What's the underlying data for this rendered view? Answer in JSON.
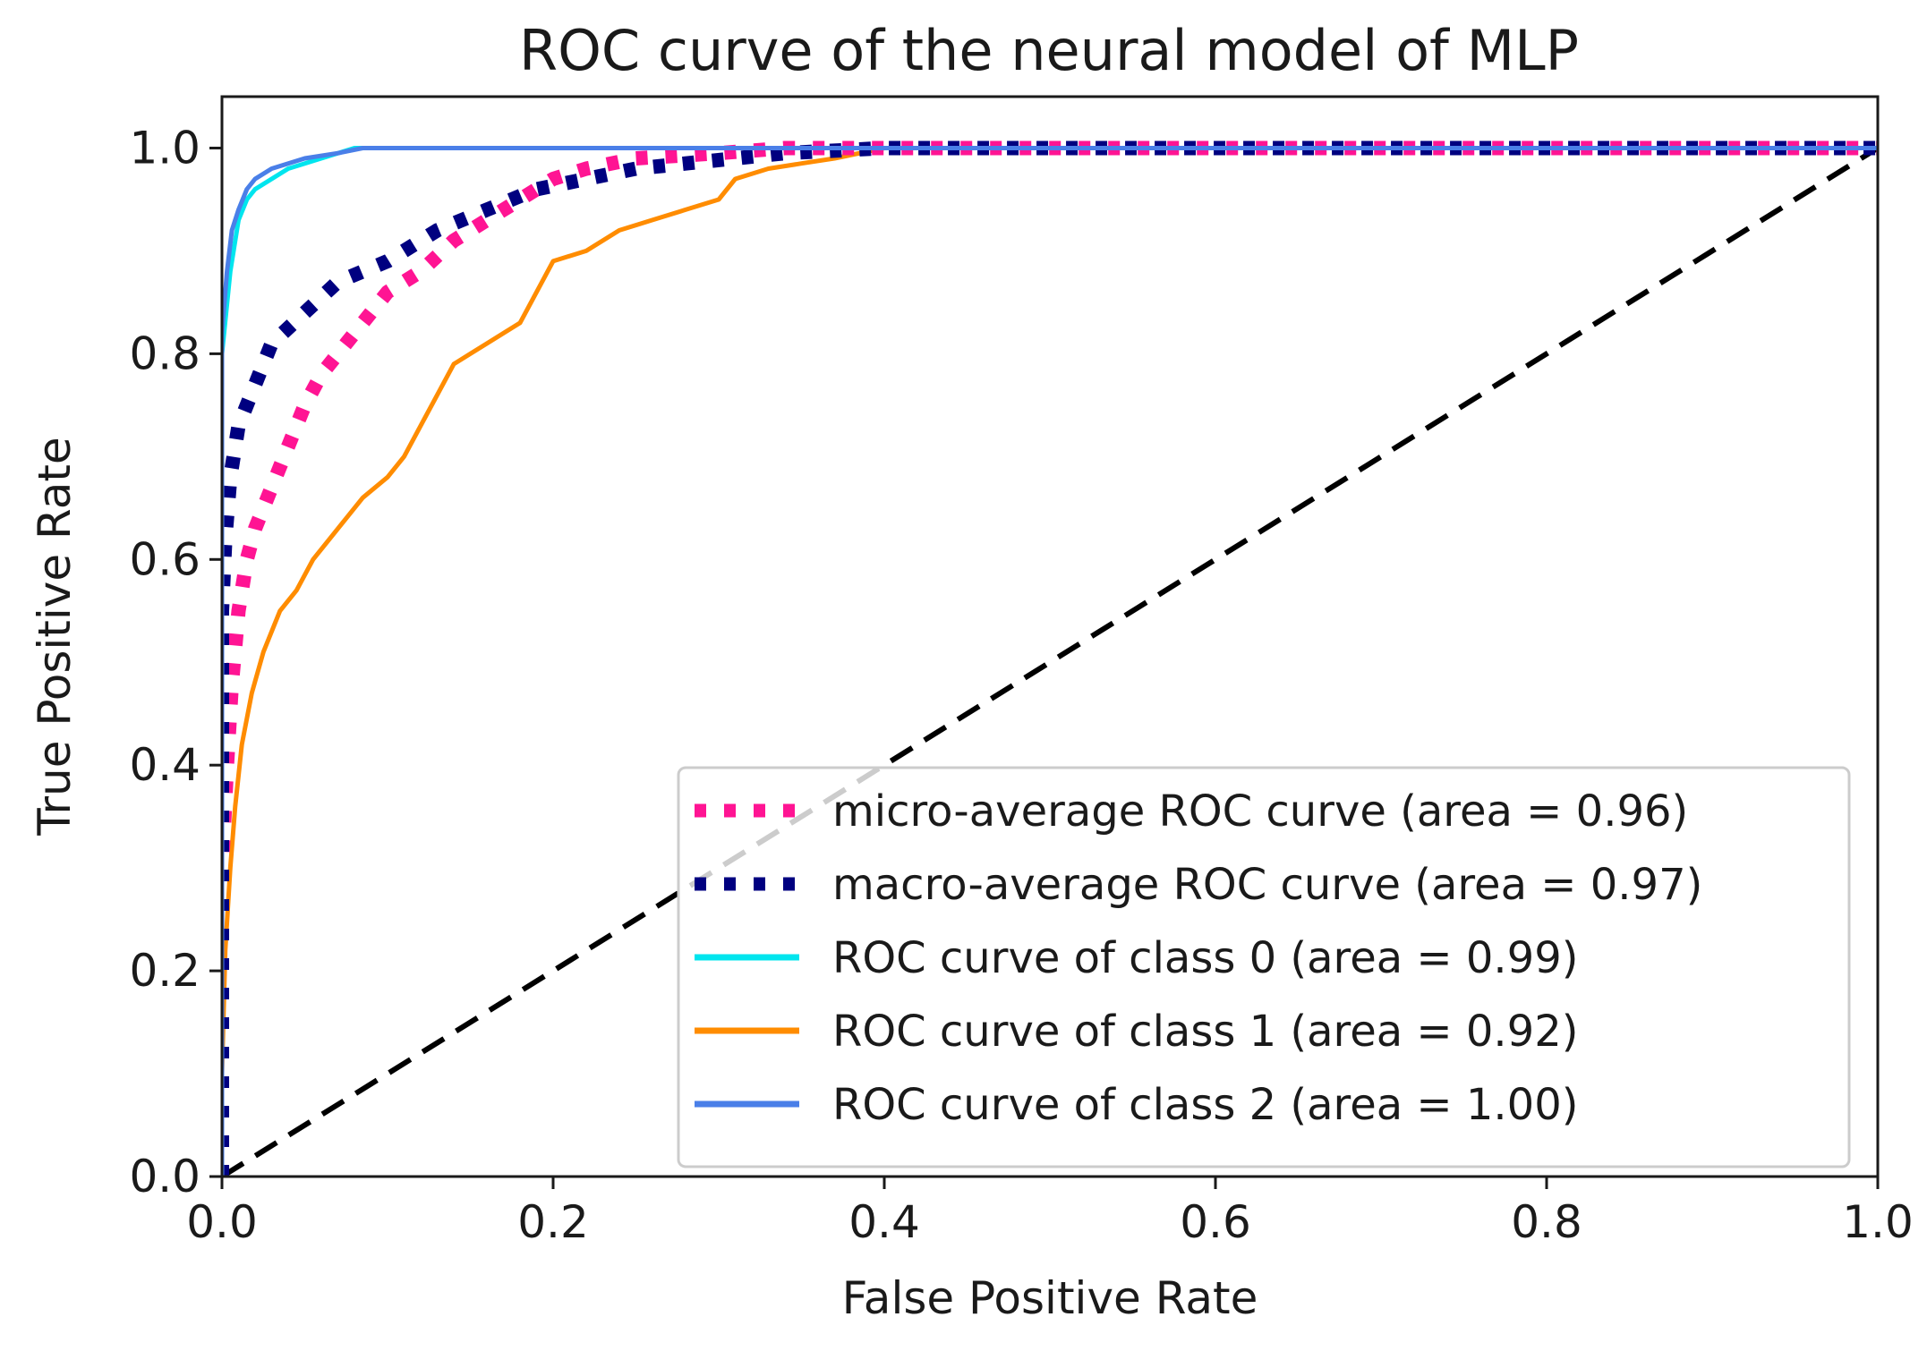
{
  "chart_data": {
    "type": "line",
    "title": "ROC curve of the neural model of MLP",
    "xlabel": "False Positive Rate",
    "ylabel": "True Positive Rate",
    "xlim": [
      0.0,
      1.0
    ],
    "ylim": [
      0.0,
      1.05
    ],
    "xticks": [
      0.0,
      0.2,
      0.4,
      0.6,
      0.8,
      1.0
    ],
    "yticks": [
      0.0,
      0.2,
      0.4,
      0.6,
      0.8,
      1.0
    ],
    "xtick_labels": [
      "0.0",
      "0.2",
      "0.4",
      "0.6",
      "0.8",
      "1.0"
    ],
    "ytick_labels": [
      "0.0",
      "0.2",
      "0.4",
      "0.6",
      "0.8",
      "1.0"
    ],
    "grid": false,
    "legend_position": "lower-right",
    "series": [
      {
        "name": "micro-average ROC curve (area = 0.96)",
        "color": "#ff1493",
        "style": "dotted",
        "x": [
          0.0,
          0.0,
          0.003,
          0.006,
          0.01,
          0.015,
          0.02,
          0.03,
          0.04,
          0.05,
          0.06,
          0.07,
          0.08,
          0.09,
          0.1,
          0.12,
          0.14,
          0.16,
          0.18,
          0.2,
          0.22,
          0.25,
          0.3,
          0.34,
          0.4,
          0.5,
          0.6,
          0.7,
          0.8,
          0.9,
          1.0
        ],
        "y": [
          0.0,
          0.3,
          0.4,
          0.48,
          0.55,
          0.6,
          0.63,
          0.67,
          0.71,
          0.75,
          0.78,
          0.8,
          0.82,
          0.84,
          0.86,
          0.88,
          0.91,
          0.93,
          0.95,
          0.97,
          0.98,
          0.99,
          0.995,
          1.0,
          1.0,
          1.0,
          1.0,
          1.0,
          1.0,
          1.0,
          1.0
        ]
      },
      {
        "name": "macro-average ROC curve (area = 0.97)",
        "color": "#000080",
        "style": "dotted",
        "x": [
          0.0,
          0.0,
          0.002,
          0.005,
          0.01,
          0.02,
          0.03,
          0.05,
          0.07,
          0.1,
          0.13,
          0.16,
          0.19,
          0.22,
          0.25,
          0.28,
          0.31,
          0.34,
          0.4,
          0.5,
          0.6,
          0.7,
          0.8,
          0.9,
          1.0
        ],
        "y": [
          0.0,
          0.55,
          0.62,
          0.68,
          0.73,
          0.77,
          0.81,
          0.84,
          0.87,
          0.89,
          0.92,
          0.94,
          0.96,
          0.97,
          0.98,
          0.985,
          0.99,
          0.995,
          1.0,
          1.0,
          1.0,
          1.0,
          1.0,
          1.0,
          1.0
        ]
      },
      {
        "name": "ROC curve of class 0 (area = 0.99)",
        "color": "#00e5ee",
        "style": "solid",
        "x": [
          0.0,
          0.0,
          0.005,
          0.01,
          0.015,
          0.02,
          0.03,
          0.04,
          0.06,
          0.08,
          0.1,
          0.2,
          0.3,
          0.5,
          1.0
        ],
        "y": [
          0.0,
          0.8,
          0.88,
          0.93,
          0.95,
          0.96,
          0.97,
          0.98,
          0.99,
          1.0,
          1.0,
          1.0,
          1.0,
          1.0,
          1.0
        ]
      },
      {
        "name": "ROC curve of class 1 (area = 0.92)",
        "color": "#ff8c00",
        "style": "solid",
        "x": [
          0.0,
          0.0,
          0.002,
          0.005,
          0.008,
          0.012,
          0.018,
          0.025,
          0.035,
          0.045,
          0.055,
          0.065,
          0.075,
          0.085,
          0.1,
          0.11,
          0.12,
          0.13,
          0.14,
          0.15,
          0.17,
          0.18,
          0.19,
          0.2,
          0.22,
          0.24,
          0.26,
          0.28,
          0.3,
          0.31,
          0.33,
          0.35,
          0.37,
          0.4,
          0.45,
          0.5,
          1.0
        ],
        "y": [
          0.0,
          0.1,
          0.22,
          0.3,
          0.36,
          0.42,
          0.47,
          0.51,
          0.55,
          0.57,
          0.6,
          0.62,
          0.64,
          0.66,
          0.68,
          0.7,
          0.73,
          0.76,
          0.79,
          0.8,
          0.82,
          0.83,
          0.86,
          0.89,
          0.9,
          0.92,
          0.93,
          0.94,
          0.95,
          0.97,
          0.98,
          0.985,
          0.99,
          1.0,
          1.0,
          1.0,
          1.0
        ]
      },
      {
        "name": "ROC curve of class 2 (area = 1.00)",
        "color": "#4a7fe8",
        "style": "solid",
        "x": [
          0.0,
          0.0,
          0.003,
          0.006,
          0.01,
          0.015,
          0.02,
          0.03,
          0.05,
          0.07,
          0.085,
          0.1,
          0.2,
          0.3,
          0.5,
          1.0
        ],
        "y": [
          0.0,
          0.82,
          0.88,
          0.92,
          0.94,
          0.96,
          0.97,
          0.98,
          0.99,
          0.995,
          1.0,
          1.0,
          1.0,
          1.0,
          1.0,
          1.0
        ]
      },
      {
        "name": "chance",
        "color": "#000000",
        "style": "dashed",
        "in_legend": false,
        "x": [
          0.0,
          1.0
        ],
        "y": [
          0.0,
          1.0
        ]
      }
    ]
  }
}
